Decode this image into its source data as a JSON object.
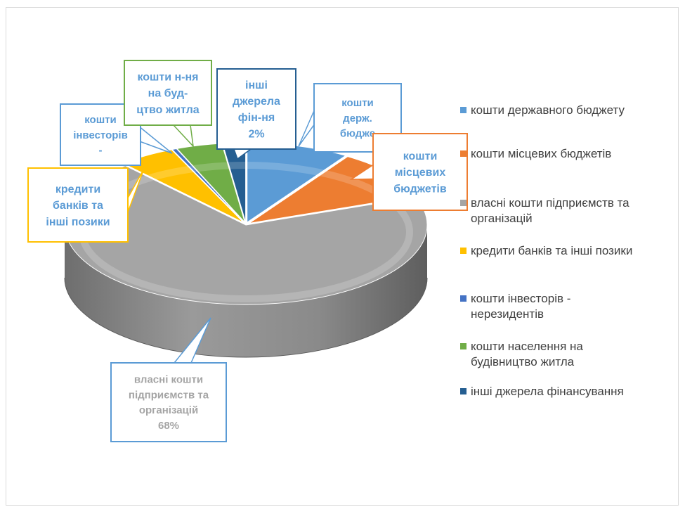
{
  "chart_data": {
    "type": "pie",
    "style": "3d-exploded-callouts",
    "slices": [
      {
        "label": "кошти державного бюджету",
        "value": 9,
        "color": "#5b9bd5"
      },
      {
        "label": "кошти місцевих бюджетів",
        "value": 10,
        "color": "#ed7d31"
      },
      {
        "label": "власні кошти підприємств та організацій",
        "value": 68,
        "color": "#a5a5a5"
      },
      {
        "label": "кредити банків та інші позики",
        "value": 5,
        "color": "#ffc000"
      },
      {
        "label": "кошти інвесторів - нерезидентів",
        "value": 0.4,
        "color": "#4472c4"
      },
      {
        "label": "кошти населення на будівництво житла",
        "value": 4,
        "color": "#70ad47"
      },
      {
        "label": "інші джерела фінансування",
        "value": 2,
        "color": "#255e91"
      }
    ],
    "callouts": [
      {
        "lines": [
          "кошти",
          "держ.",
          "бюдже"
        ],
        "border": "#5b9bd5",
        "text_color": "#5b9bd5"
      },
      {
        "lines": [
          "кошти",
          "місцевих",
          "бюджетів"
        ],
        "border": "#ed7d31",
        "text_color": "#5b9bd5"
      },
      {
        "lines": [
          "власні кошти",
          "підприємств та",
          "організацій",
          "68%"
        ],
        "border": "#5b9bd5",
        "text_color": "#a5a5a5"
      },
      {
        "lines": [
          "кредити",
          "банків та",
          "інші позики"
        ],
        "border": "#ffc000",
        "text_color": "#5b9bd5"
      },
      {
        "lines": [
          "кошти",
          "інвесторів",
          "-"
        ],
        "border": "#5b9bd5",
        "text_color": "#5b9bd5"
      },
      {
        "lines": [
          "кошти н-ня",
          "на буд-",
          "цтво житла"
        ],
        "border": "#70ad47",
        "text_color": "#5b9bd5"
      },
      {
        "lines": [
          "інші",
          "джерела",
          "фін-ня",
          "2%"
        ],
        "border": "#255e91",
        "text_color": "#5b9bd5"
      }
    ],
    "legend": {
      "position": "right",
      "items": [
        {
          "lines": [
            "кошти державного бюджету"
          ],
          "color": "#5b9bd5"
        },
        {
          "lines": [
            "кошти місцевих бюджетів"
          ],
          "color": "#ed7d31"
        },
        {
          "lines": [
            "власні кошти підприємств та",
            "організацій"
          ],
          "color": "#a5a5a5"
        },
        {
          "lines": [
            "кредити банків та інші позики"
          ],
          "color": "#ffc000"
        },
        {
          "lines": [
            "кошти інвесторів -",
            "нерезидентів"
          ],
          "color": "#4472c4"
        },
        {
          "lines": [
            "кошти населення на",
            "будівництво житла"
          ],
          "color": "#70ad47"
        },
        {
          "lines": [
            "інші джерела фінансування"
          ],
          "color": "#255e91"
        }
      ]
    }
  }
}
